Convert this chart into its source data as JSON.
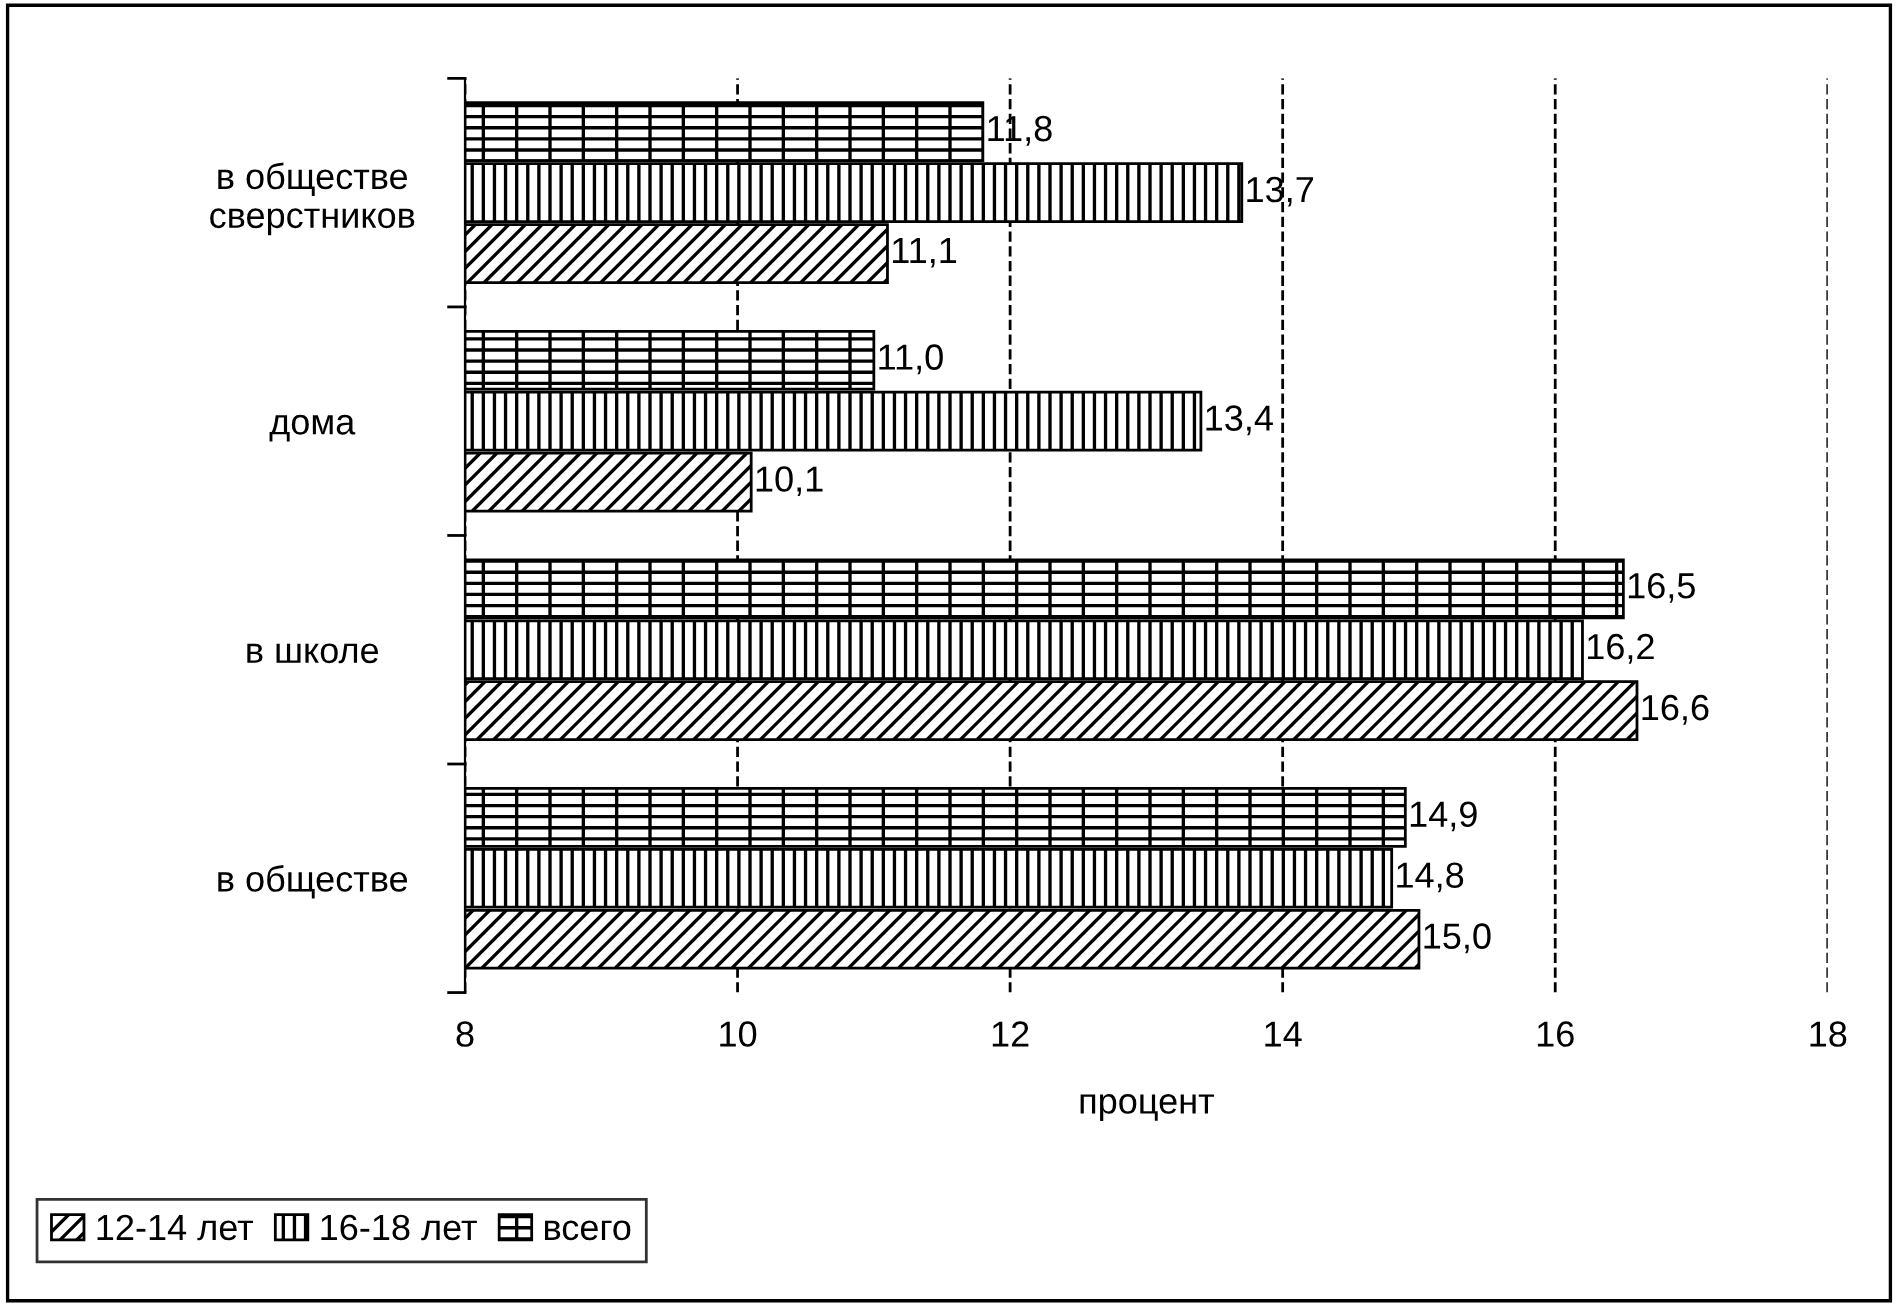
{
  "chart_data": {
    "type": "bar",
    "orientation": "horizontal",
    "xlabel": "процент",
    "categories": [
      "в обществе\nсверстников",
      "дома",
      "в школе",
      "в обществе"
    ],
    "series": [
      {
        "name": "12-14 лет",
        "color": "#000000",
        "values": [
          11.1,
          10.1,
          16.6,
          15.0
        ],
        "value_labels": [
          "11,1",
          "10,1",
          "16,6",
          "15,0"
        ]
      },
      {
        "name": "16-18 лет",
        "color": "#000000",
        "values": [
          13.7,
          13.4,
          16.2,
          14.8
        ],
        "value_labels": [
          "13,7",
          "13,4",
          "16,2",
          "14,8"
        ]
      },
      {
        "name": "всего",
        "color": "#000000",
        "values": [
          11.8,
          11.0,
          16.5,
          14.9
        ],
        "value_labels": [
          "11,8",
          "11,0",
          "16,5",
          "14,9"
        ]
      }
    ],
    "xlim": [
      8,
      18
    ],
    "xticks": [
      8,
      10,
      12,
      14,
      16,
      18
    ],
    "grid": "x",
    "line_style": "dashed",
    "legend": "bottom left"
  }
}
